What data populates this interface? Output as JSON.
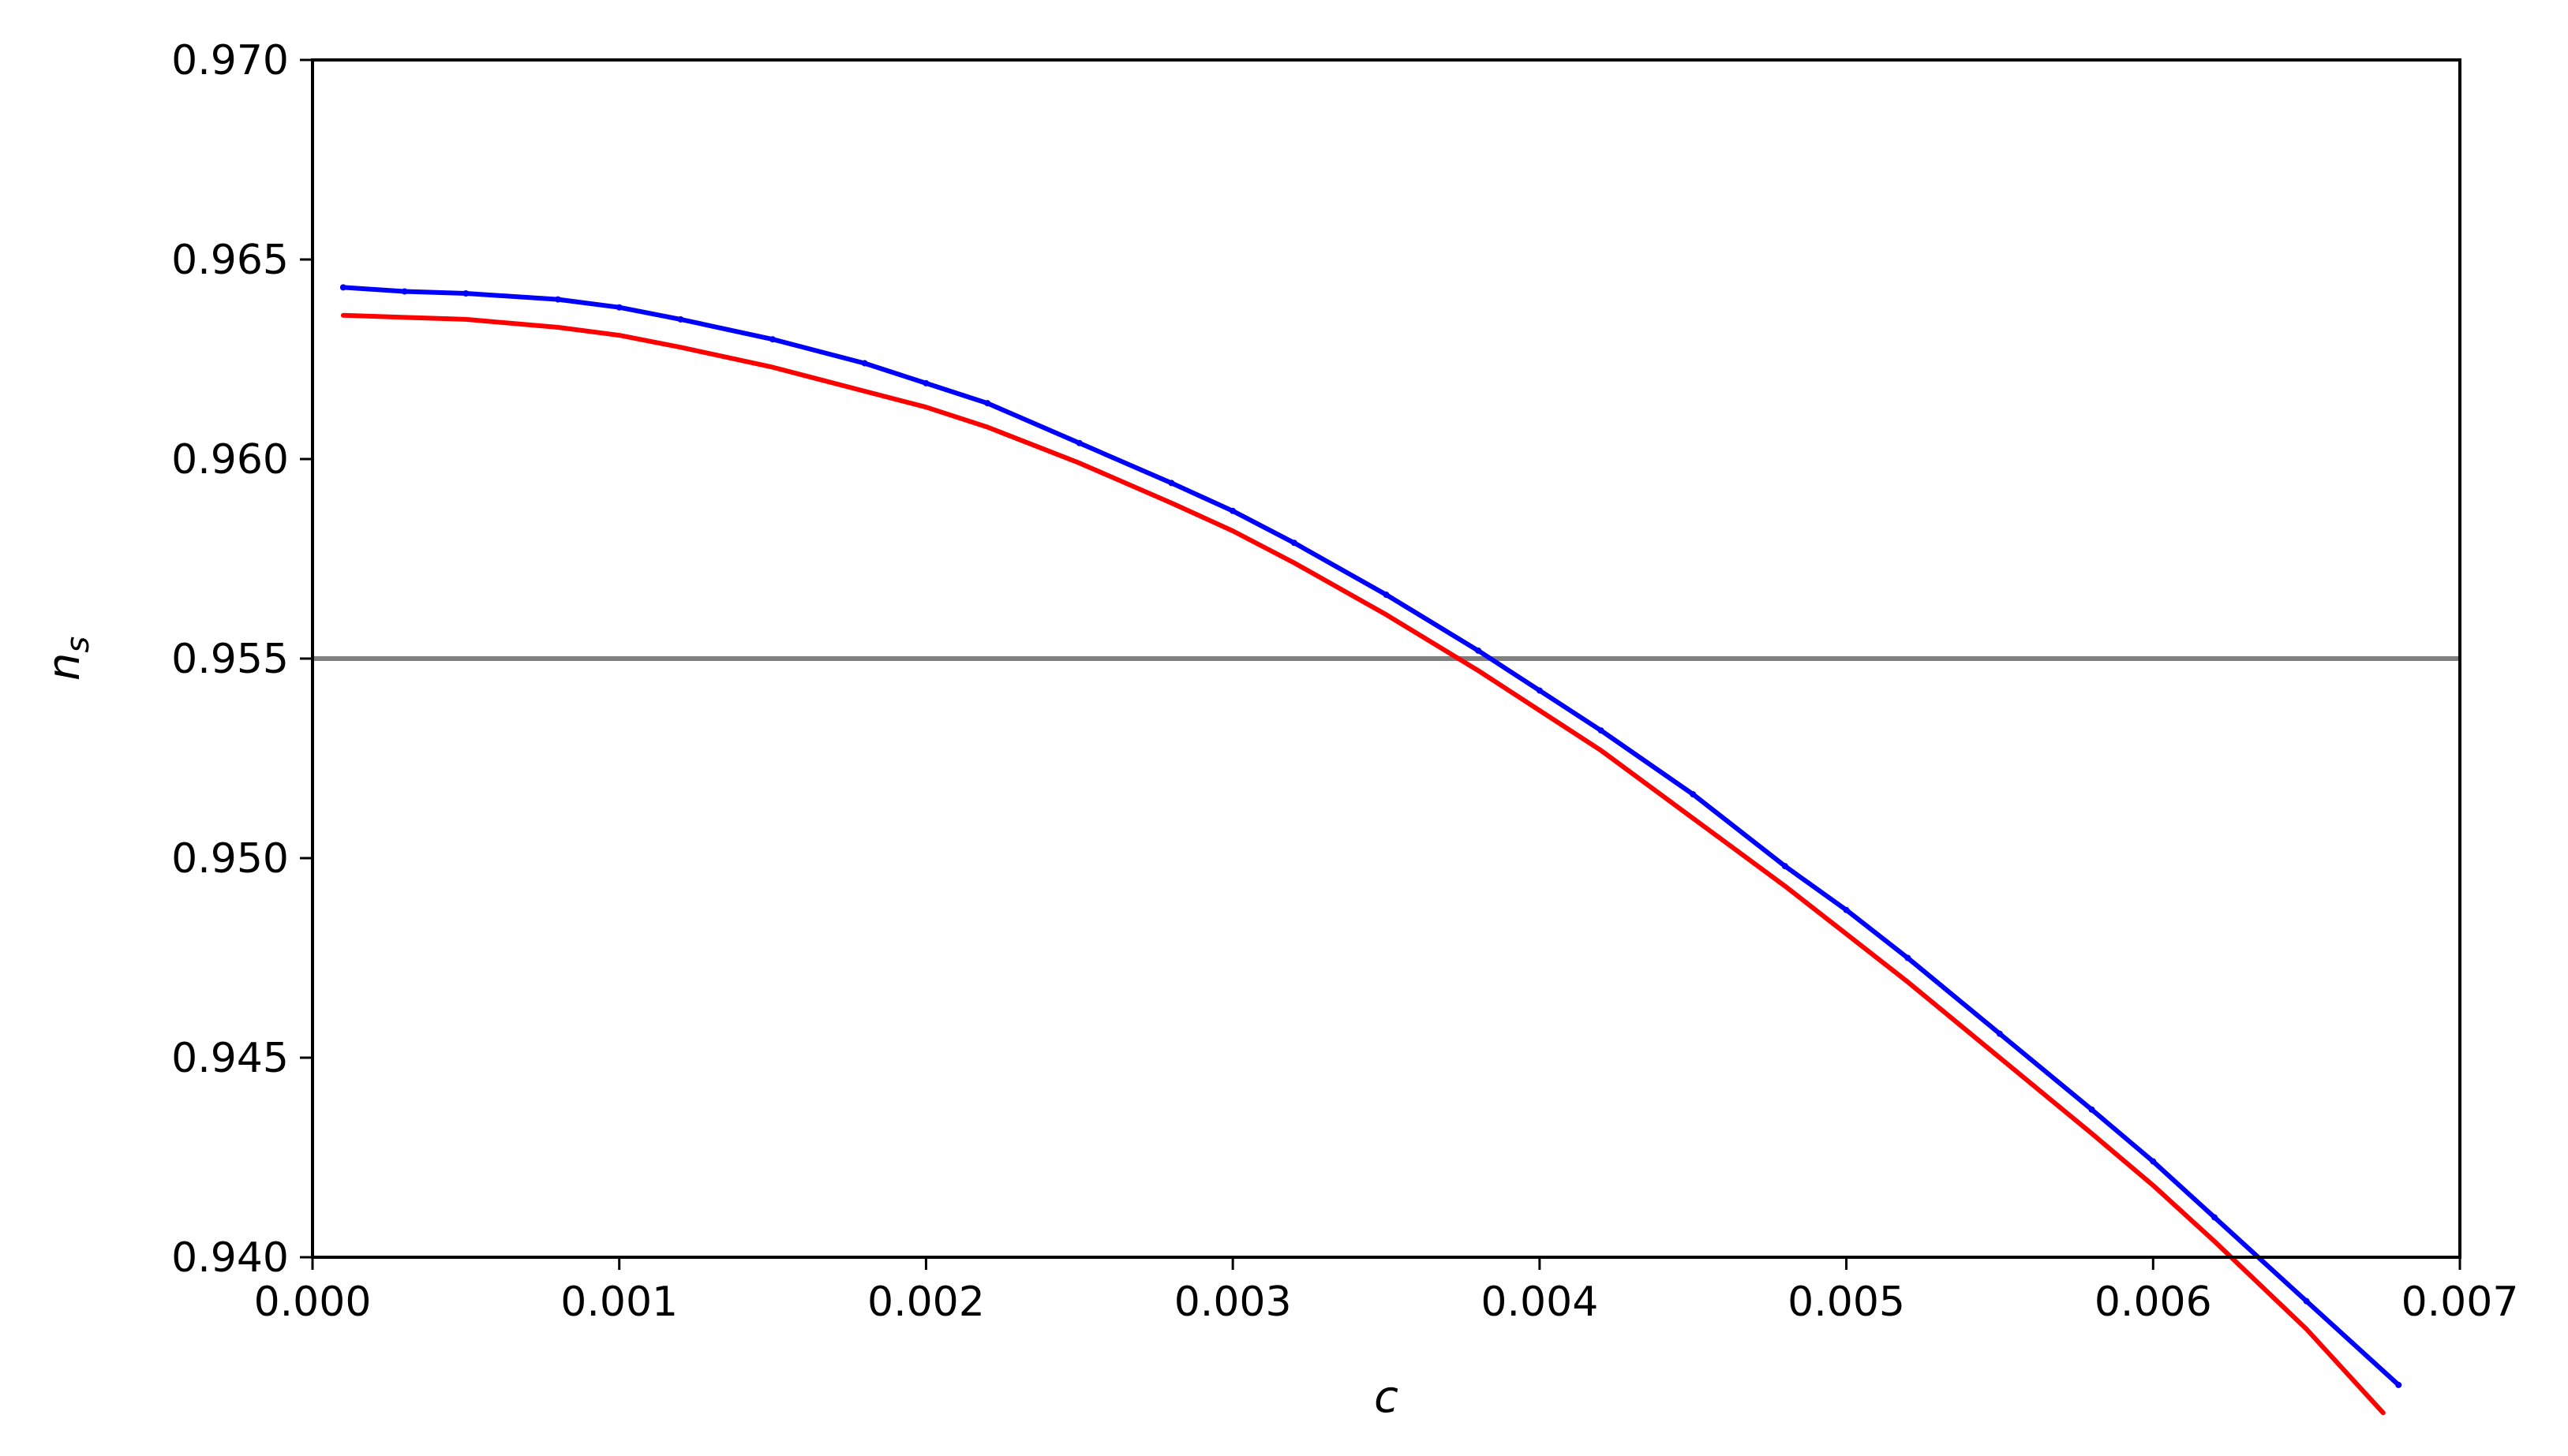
{
  "chart_data": {
    "type": "line",
    "xlabel": "c",
    "ylabel": {
      "base": "n",
      "subscript": "s"
    },
    "xlim": [
      0.0,
      0.007
    ],
    "ylim": [
      0.94,
      0.97
    ],
    "x_ticks": [
      "0.000",
      "0.001",
      "0.002",
      "0.003",
      "0.004",
      "0.005",
      "0.006",
      "0.007"
    ],
    "y_ticks": [
      "0.940",
      "0.945",
      "0.950",
      "0.955",
      "0.960",
      "0.965",
      "0.970"
    ],
    "grid": false,
    "reference_line": {
      "y": 0.955,
      "color": "#808080"
    },
    "series": [
      {
        "color": "#0000ff",
        "style": "dots",
        "x": [
          0.0001,
          0.0003,
          0.0005,
          0.0008,
          0.001,
          0.0012,
          0.0015,
          0.0018,
          0.002,
          0.0022,
          0.0025,
          0.0028,
          0.003,
          0.0032,
          0.0035,
          0.0038,
          0.004,
          0.0042,
          0.0045,
          0.0048,
          0.005,
          0.0052,
          0.0055,
          0.0058,
          0.006,
          0.0062,
          0.0065,
          0.0068
        ],
        "y": [
          0.9643,
          0.9642,
          0.96415,
          0.964,
          0.9638,
          0.9635,
          0.963,
          0.9624,
          0.9619,
          0.9614,
          0.9604,
          0.9594,
          0.9587,
          0.9579,
          0.9566,
          0.9552,
          0.9542,
          0.9532,
          0.9516,
          0.9498,
          0.9487,
          0.9475,
          0.9456,
          0.9437,
          0.9424,
          0.941,
          0.9389,
          0.9368
        ]
      },
      {
        "color": "#ff0000",
        "style": "line",
        "x": [
          0.0001,
          0.0003,
          0.0005,
          0.0008,
          0.001,
          0.0012,
          0.0015,
          0.0018,
          0.002,
          0.0022,
          0.0025,
          0.0028,
          0.003,
          0.0032,
          0.0035,
          0.0038,
          0.004,
          0.0042,
          0.0045,
          0.0048,
          0.005,
          0.0052,
          0.0055,
          0.0058,
          0.006,
          0.0062,
          0.0065,
          0.00675
        ],
        "y": [
          0.9636,
          0.96355,
          0.9635,
          0.9633,
          0.9631,
          0.9628,
          0.9623,
          0.9617,
          0.9613,
          0.9608,
          0.9599,
          0.9589,
          0.9582,
          0.9574,
          0.9561,
          0.9547,
          0.9537,
          0.9527,
          0.951,
          0.9493,
          0.9481,
          0.9469,
          0.945,
          0.9431,
          0.9418,
          0.9404,
          0.9382,
          0.9361
        ]
      }
    ]
  }
}
